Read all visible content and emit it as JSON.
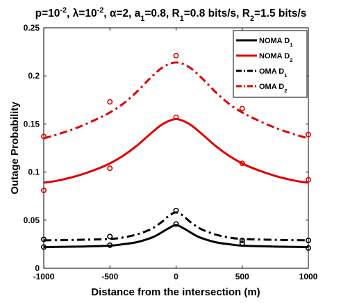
{
  "chart_data": {
    "type": "line",
    "title": {
      "parts": [
        {
          "t": "p=10"
        },
        {
          "t": "-2",
          "sup": true
        },
        {
          "t": ", λ=10"
        },
        {
          "t": "-2",
          "sup": true
        },
        {
          "t": ", α=2, a"
        },
        {
          "t": "1",
          "sub": true
        },
        {
          "t": "=0.8, R"
        },
        {
          "t": "1",
          "sub": true
        },
        {
          "t": "=0.8 bits/s, R"
        },
        {
          "t": "2",
          "sub": true
        },
        {
          "t": "=1.5 bits/s"
        }
      ]
    },
    "xlabel": "Distance from the intersection (m)",
    "ylabel": "Outage Probability",
    "xlim": [
      -1000,
      1000
    ],
    "ylim": [
      0,
      0.25
    ],
    "xticks": [
      -1000,
      -500,
      0,
      500,
      1000
    ],
    "xtick_labels": [
      "-1000",
      "-500",
      "0",
      "500",
      "1000"
    ],
    "yticks": [
      0,
      0.05,
      0.1,
      0.15,
      0.2,
      0.25
    ],
    "ytick_labels": [
      "0",
      "0.05",
      "0.1",
      "0.15",
      "0.2",
      "0.25"
    ],
    "grid": false,
    "legend_position": "top-right",
    "series": [
      {
        "name": "NOMA D1",
        "legend_parts": [
          {
            "t": "NOMA D"
          },
          {
            "t": "1",
            "sub": true
          }
        ],
        "color": "#000000",
        "dash": "solid",
        "curve": {
          "x": [
            -1000,
            -750,
            -500,
            -400,
            -300,
            -200,
            -150,
            -100,
            -50,
            0,
            50,
            100,
            150,
            200,
            300,
            400,
            500,
            750,
            1000
          ],
          "y": [
            0.022,
            0.0225,
            0.0235,
            0.025,
            0.027,
            0.031,
            0.034,
            0.038,
            0.042,
            0.045,
            0.042,
            0.038,
            0.034,
            0.031,
            0.027,
            0.025,
            0.0235,
            0.0225,
            0.022
          ]
        },
        "markers": {
          "x": [
            -1000,
            -500,
            0,
            500,
            1000
          ],
          "y": [
            0.022,
            0.024,
            0.046,
            0.026,
            0.021
          ]
        }
      },
      {
        "name": "NOMA D2",
        "legend_parts": [
          {
            "t": "NOMA D"
          },
          {
            "t": "2",
            "sub": true
          }
        ],
        "color": "#e00000",
        "dash": "solid",
        "curve": {
          "x": [
            -1000,
            -900,
            -750,
            -600,
            -500,
            -400,
            -300,
            -200,
            -100,
            0,
            100,
            200,
            300,
            400,
            500,
            600,
            750,
            900,
            1000
          ],
          "y": [
            0.089,
            0.091,
            0.096,
            0.103,
            0.109,
            0.117,
            0.127,
            0.139,
            0.15,
            0.155,
            0.15,
            0.139,
            0.127,
            0.117,
            0.109,
            0.103,
            0.096,
            0.091,
            0.089
          ]
        },
        "markers": {
          "x": [
            -1000,
            -500,
            0,
            500,
            1000
          ],
          "y": [
            0.081,
            0.104,
            0.157,
            0.109,
            0.092
          ]
        }
      },
      {
        "name": "OMA D1",
        "legend_parts": [
          {
            "t": "OMA D"
          },
          {
            "t": "1",
            "sub": true
          }
        ],
        "color": "#000000",
        "dash": "dashdot",
        "curve": {
          "x": [
            -1000,
            -750,
            -500,
            -400,
            -300,
            -200,
            -150,
            -100,
            -50,
            0,
            50,
            100,
            150,
            200,
            300,
            400,
            500,
            750,
            1000
          ],
          "y": [
            0.029,
            0.0295,
            0.0305,
            0.032,
            0.035,
            0.04,
            0.044,
            0.049,
            0.055,
            0.058,
            0.055,
            0.049,
            0.044,
            0.04,
            0.035,
            0.032,
            0.0305,
            0.0295,
            0.029
          ]
        },
        "markers": {
          "x": [
            -1000,
            -500,
            0,
            500,
            1000
          ],
          "y": [
            0.03,
            0.033,
            0.06,
            0.029,
            0.029
          ]
        }
      },
      {
        "name": "OMA D2",
        "legend_parts": [
          {
            "t": "OMA D"
          },
          {
            "t": "2",
            "sub": true
          }
        ],
        "color": "#e00000",
        "dash": "dashdot",
        "curve": {
          "x": [
            -1000,
            -900,
            -750,
            -600,
            -500,
            -400,
            -300,
            -200,
            -100,
            0,
            100,
            200,
            300,
            400,
            500,
            600,
            750,
            900,
            1000
          ],
          "y": [
            0.135,
            0.139,
            0.146,
            0.155,
            0.162,
            0.171,
            0.183,
            0.197,
            0.209,
            0.214,
            0.209,
            0.197,
            0.183,
            0.171,
            0.162,
            0.155,
            0.146,
            0.139,
            0.135
          ]
        },
        "markers": {
          "x": [
            -1000,
            -500,
            0,
            500,
            1000
          ],
          "y": [
            0.137,
            0.173,
            0.221,
            0.166,
            0.139
          ]
        }
      }
    ]
  }
}
